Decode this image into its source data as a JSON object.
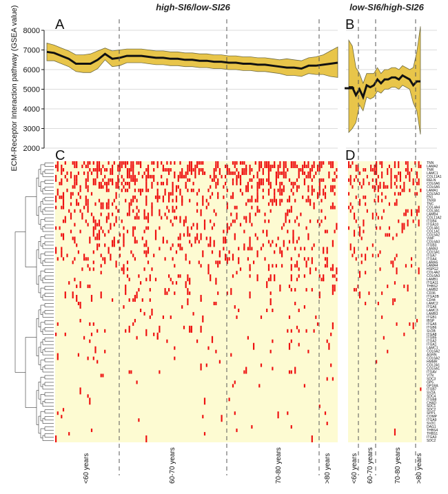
{
  "titles": {
    "left": "high-SI6/low-SI26",
    "right": "low-SI6/high-SI26"
  },
  "panel_labels": {
    "A": "A",
    "B": "B",
    "C": "C",
    "D": "D"
  },
  "colors": {
    "band": "#e8c54a",
    "band_edge": "#6e6a40",
    "heat_bg": "#fdfbd2",
    "heat_mark": "#ee1111",
    "line": "#111111"
  },
  "chart_data": [
    {
      "id": "A",
      "type": "line",
      "ylabel": "ECM-Receptor Interaction pathway (GSEA value)",
      "ylim": [
        2000,
        8000
      ],
      "yticks": [
        2000,
        3000,
        4000,
        5000,
        6000,
        7000,
        8000
      ],
      "grid": true,
      "x": [
        0,
        1,
        2,
        3,
        4,
        5,
        6,
        7,
        8,
        9,
        10,
        11,
        12,
        13,
        14,
        15,
        16,
        17,
        18,
        19,
        20,
        21,
        22,
        23,
        24,
        25,
        26,
        27,
        28,
        29,
        30,
        31,
        32,
        33,
        34,
        35,
        36,
        37,
        38,
        39,
        40
      ],
      "mean": [
        6900,
        6850,
        6700,
        6550,
        6300,
        6300,
        6300,
        6500,
        6800,
        6550,
        6600,
        6700,
        6700,
        6700,
        6650,
        6600,
        6600,
        6550,
        6550,
        6500,
        6500,
        6450,
        6450,
        6400,
        6400,
        6350,
        6350,
        6300,
        6300,
        6250,
        6250,
        6200,
        6150,
        6100,
        6100,
        6050,
        6200,
        6200,
        6250,
        6300,
        6350
      ],
      "upper": [
        7350,
        7250,
        7100,
        6950,
        6750,
        6750,
        6800,
        6950,
        7100,
        6950,
        7000,
        7050,
        7050,
        7050,
        7000,
        6950,
        6950,
        6900,
        6900,
        6850,
        6850,
        6800,
        6800,
        6750,
        6750,
        6700,
        6700,
        6650,
        6650,
        6600,
        6600,
        6550,
        6500,
        6550,
        6500,
        6450,
        6600,
        6650,
        6750,
        6950,
        7150
      ],
      "lower": [
        6450,
        6450,
        6300,
        6150,
        5900,
        5850,
        5850,
        6050,
        6500,
        6150,
        6200,
        6350,
        6350,
        6350,
        6300,
        6250,
        6250,
        6200,
        6200,
        6150,
        6150,
        6100,
        6100,
        6050,
        6050,
        6000,
        6000,
        5950,
        5950,
        5900,
        5900,
        5850,
        5800,
        5700,
        5700,
        5650,
        5800,
        5750,
        5750,
        5650,
        5600
      ]
    },
    {
      "id": "B",
      "type": "line",
      "ylim": [
        2000,
        8000
      ],
      "yticks": [
        2000,
        3000,
        4000,
        5000,
        6000,
        7000,
        8000
      ],
      "grid": true,
      "x": [
        0,
        1,
        2,
        3,
        4,
        5,
        6,
        7,
        8,
        9,
        10,
        11,
        12,
        13,
        14,
        15,
        16,
        17,
        18,
        19,
        20
      ],
      "mean": [
        5100,
        5100,
        4700,
        5000,
        4600,
        5200,
        5100,
        5200,
        5500,
        5300,
        5500,
        5500,
        5600,
        5600,
        5500,
        5700,
        5600,
        5500,
        5200,
        5400,
        5400
      ],
      "upper": [
        7500,
        7200,
        6100,
        5800,
        5300,
        5800,
        5800,
        5800,
        6100,
        5800,
        6000,
        6000,
        6100,
        6100,
        6000,
        6200,
        6100,
        6000,
        6100,
        6900,
        8200
      ],
      "lower": [
        2800,
        3000,
        3300,
        4200,
        3900,
        4600,
        4500,
        4600,
        4900,
        4800,
        5000,
        5000,
        5100,
        5100,
        5000,
        5200,
        5100,
        5000,
        4300,
        3900,
        2700
      ]
    },
    {
      "id": "C",
      "type": "heatmap",
      "columns": 150,
      "age_groups": [
        "<60 years",
        "60-70 years",
        "70-80 years",
        ">80 years"
      ],
      "mark_density": [
        0.45,
        0.4,
        0.35,
        0.3,
        0.28,
        0.26,
        0.25,
        0.22,
        0.2,
        0.2,
        0.18,
        0.18,
        0.16,
        0.16,
        0.15,
        0.15,
        0.14,
        0.14,
        0.13,
        0.13,
        0.12,
        0.12,
        0.12,
        0.11,
        0.11,
        0.1,
        0.1,
        0.1,
        0.09,
        0.09,
        0.08,
        0.08,
        0.08,
        0.07,
        0.07,
        0.07,
        0.06,
        0.06,
        0.06,
        0.05,
        0.05,
        0.05,
        0.04,
        0.04,
        0.04,
        0.04,
        0.03,
        0.03,
        0.03,
        0.03,
        0.03,
        0.02,
        0.02,
        0.02,
        0.02,
        0.02,
        0.02,
        0.02,
        0.01,
        0.01,
        0.01,
        0.01,
        0.01,
        0.01,
        0.01,
        0.01,
        0.01,
        0.01,
        0.01,
        0.01,
        0.01,
        0.01,
        0.01,
        0.01,
        0.01,
        0.01,
        0.01,
        0.01,
        0.01,
        0.01,
        0.01,
        0.01,
        0.01,
        0.01
      ]
    },
    {
      "id": "D",
      "type": "heatmap",
      "columns": 40,
      "age_groups": [
        "<60 years",
        "60-70 years",
        "70-80 years",
        ">80 years"
      ]
    }
  ],
  "genes": [
    "TNN",
    "LAMA2",
    "TNR",
    "LAMC1",
    "COL11A1",
    "RELN",
    "COL6A6",
    "COL6A5",
    "LAMA1",
    "COL5A3",
    "FN1",
    "TNXB",
    "TNC",
    "COL4A4",
    "COL3A1",
    "LAMB4",
    "COL11A2",
    "ITGB4",
    "ITGA10",
    "COL4A1",
    "COL1A1",
    "COL5A2",
    "VWF",
    "COL6A3",
    "ITGB3",
    "LAMA3",
    "COL5A1",
    "ITGA7",
    "ITGA4",
    "LAMA5",
    "LAMA4",
    "HSPG2",
    "COL4A2",
    "COL6A3",
    "LAMB1",
    "ITGA11",
    "THBS2",
    "LAMB2",
    "CD36",
    "ITGA2B",
    "CD44",
    "LAMC2",
    "ITGA6",
    "LAMC3",
    "LAMB3",
    "ITGB1",
    "IBSP",
    "ITGA5",
    "ITGB6",
    "SV2B",
    "ITGA8",
    "ITGB5",
    "ITGA2",
    "ITGA1",
    "LAMC1",
    "COL6A2",
    "AGRN",
    "COL6A2",
    "HMMR",
    "COL2A1",
    "COL6A1",
    "ITGAV",
    "VTN",
    "SDC3",
    "GP5",
    "GP1BA",
    "ITGB7",
    "SV2A",
    "SDC4",
    "ITGB8",
    "CHAD",
    "SDC1",
    "SDC2",
    "SPP1",
    "COMP",
    "ITGA9",
    "SV2C",
    "DAG1",
    "THBS4",
    "THBS1",
    "ITGA3",
    "SDC2"
  ]
}
